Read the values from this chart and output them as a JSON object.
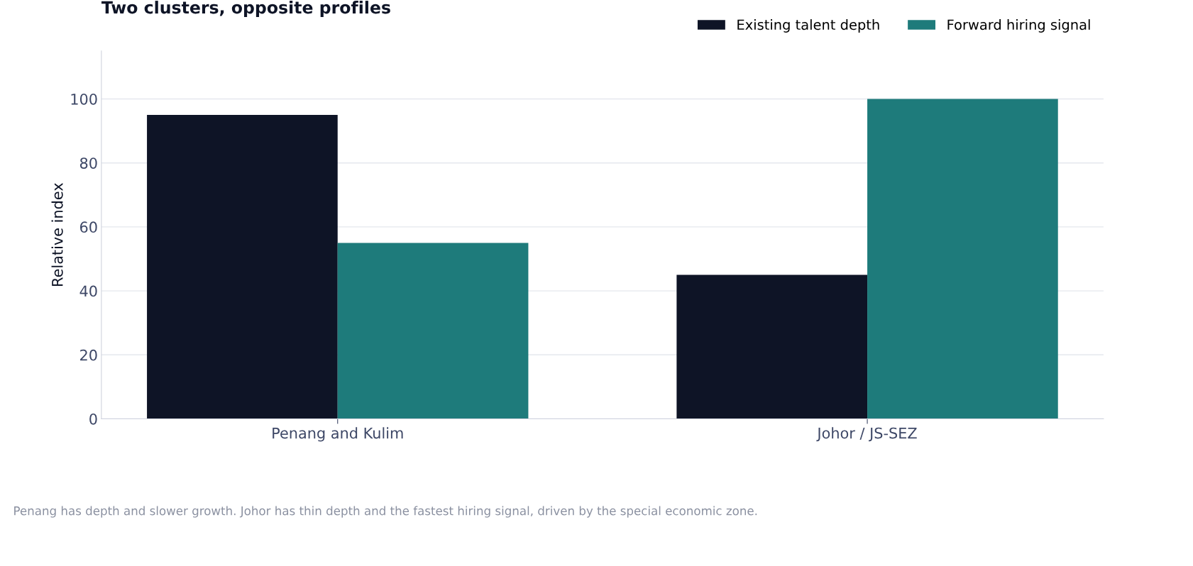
{
  "chart_data": {
    "type": "bar",
    "title": "Two clusters, opposite profiles",
    "ylabel": "Relative index",
    "categories": [
      "Penang and Kulim",
      "Johor / JS-SEZ"
    ],
    "series": [
      {
        "name": "Existing talent depth",
        "color": "#0e1426",
        "values": [
          95,
          45
        ]
      },
      {
        "name": "Forward hiring signal",
        "color": "#1e7b7b",
        "values": [
          55,
          100
        ]
      }
    ],
    "ylim": [
      0,
      115
    ],
    "yticks": [
      0,
      20,
      40,
      60,
      80,
      100
    ],
    "grid": "y",
    "legend": "top right",
    "annotations": [
      "Penang has depth and slower growth. Johor has thin depth and the fastest hiring signal, driven by the special economic zone."
    ]
  }
}
